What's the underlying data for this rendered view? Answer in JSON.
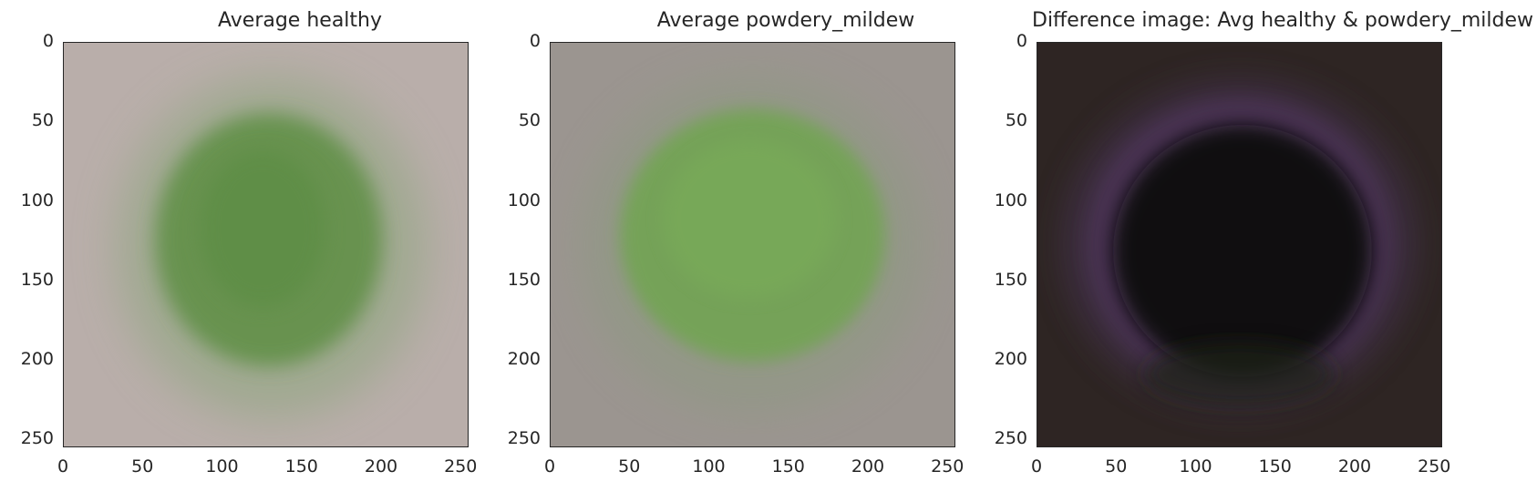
{
  "panels": [
    {
      "title": "Average healthy",
      "background_color": "#b9aeaa",
      "leaf_color": "#5e8f45"
    },
    {
      "title": "Average powdery_mildew",
      "background_color": "#9b9590",
      "leaf_color": "#72a452"
    },
    {
      "title": "Difference image: Avg healthy & powdery_mildew",
      "background_color": "#2e2523",
      "leaf_color": "#0b0810",
      "rim_color": "#5a3a6a"
    }
  ],
  "axis": {
    "x_ticks": [
      "0",
      "50",
      "100",
      "150",
      "200",
      "250"
    ],
    "y_ticks": [
      "0",
      "50",
      "100",
      "150",
      "200",
      "250"
    ],
    "x_range": [
      0,
      255
    ],
    "y_range": [
      0,
      255
    ]
  }
}
